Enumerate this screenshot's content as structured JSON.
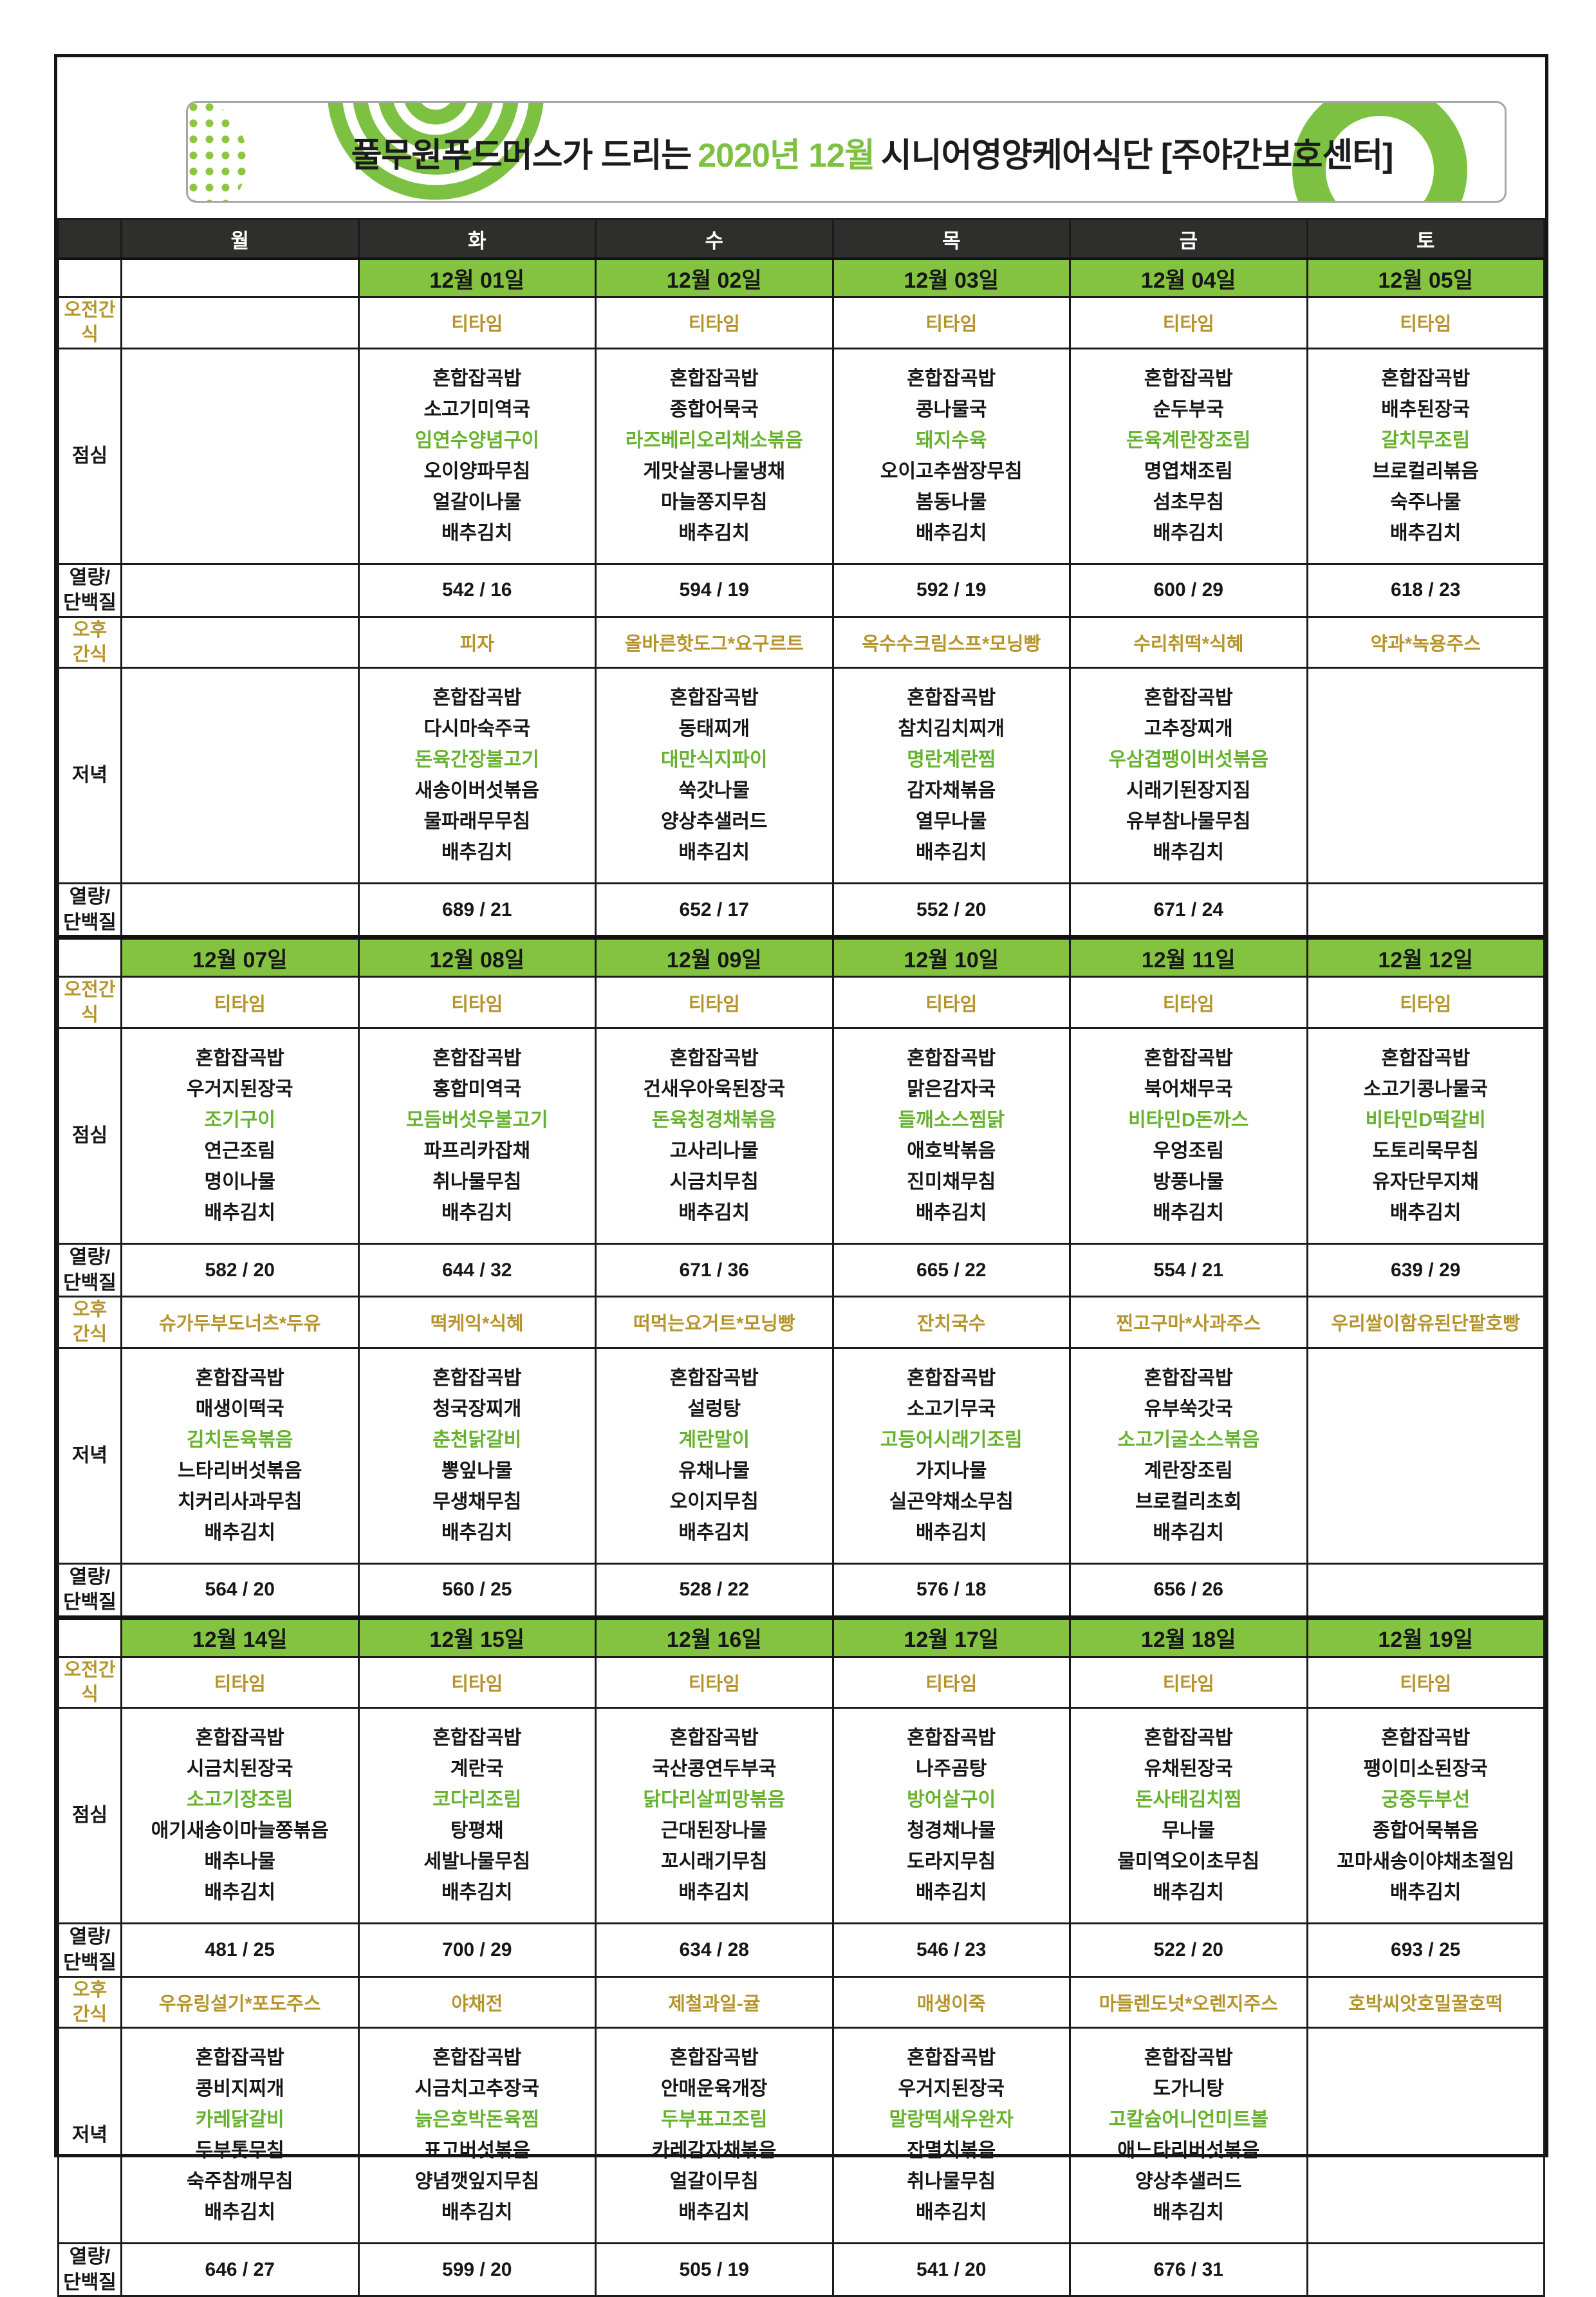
{
  "header": {
    "title_prefix": "풀무원푸드머스가 드리는 ",
    "title_highlight": "2020년 12월",
    "title_suffix": " 시니어영양케어식단 [주야간보호센터]"
  },
  "colors": {
    "band_green": "#84c340",
    "band_dark": "#2e2e2c",
    "dish_green": "#66b22e",
    "snack_gold": "#b6942c",
    "logo_green": "#7dc142"
  },
  "days": [
    "월",
    "화",
    "수",
    "목",
    "금",
    "토"
  ],
  "row_labels": {
    "morning_snack": "오전간\n식",
    "lunch": "점심",
    "calories": "열량/\n단백질",
    "afternoon_snack": "오후\n간식",
    "dinner": "저녁"
  },
  "highlight_line_index": 2,
  "weeks": [
    {
      "dates": [
        "",
        "12월 01일",
        "12월 02일",
        "12월 03일",
        "12월 04일",
        "12월 05일"
      ],
      "morning_snack": [
        "",
        "티타임",
        "티타임",
        "티타임",
        "티타임",
        "티타임"
      ],
      "lunch": [
        null,
        [
          "혼합잡곡밥",
          "소고기미역국",
          "임연수양념구이",
          "오이양파무침",
          "얼갈이나물",
          "배추김치"
        ],
        [
          "혼합잡곡밥",
          "종합어묵국",
          "라즈베리오리채소볶음",
          "게맛살콩나물냉채",
          "마늘쫑지무침",
          "배추김치"
        ],
        [
          "혼합잡곡밥",
          "콩나물국",
          "돼지수육",
          "오이고추쌈장무침",
          "봄동나물",
          "배추김치"
        ],
        [
          "혼합잡곡밥",
          "순두부국",
          "돈육계란장조림",
          "명엽채조림",
          "섬초무침",
          "배추김치"
        ],
        [
          "혼합잡곡밥",
          "배추된장국",
          "갈치무조림",
          "브로컬리볶음",
          "숙주나물",
          "배추김치"
        ]
      ],
      "lunch_calories": [
        "",
        "542 / 16",
        "594 / 19",
        "592 / 19",
        "600 / 29",
        "618 / 23"
      ],
      "afternoon_snack": [
        "",
        "피자",
        "올바른핫도그*요구르트",
        "옥수수크림스프*모닝빵",
        "수리취떡*식혜",
        "약과*녹용주스"
      ],
      "dinner": [
        null,
        [
          "혼합잡곡밥",
          "다시마숙주국",
          "돈육간장불고기",
          "새송이버섯볶음",
          "물파래무무침",
          "배추김치"
        ],
        [
          "혼합잡곡밥",
          "동태찌개",
          "대만식지파이",
          "쑥갓나물",
          "양상추샐러드",
          "배추김치"
        ],
        [
          "혼합잡곡밥",
          "참치김치찌개",
          "명란계란찜",
          "감자채볶음",
          "열무나물",
          "배추김치"
        ],
        [
          "혼합잡곡밥",
          "고추장찌개",
          "우삼겹팽이버섯볶음",
          "시래기된장지짐",
          "유부참나물무침",
          "배추김치"
        ],
        null
      ],
      "dinner_calories": [
        "",
        "689 / 21",
        "652 / 17",
        "552 / 20",
        "671 / 24",
        ""
      ]
    },
    {
      "dates": [
        "12월 07일",
        "12월 08일",
        "12월 09일",
        "12월 10일",
        "12월 11일",
        "12월 12일"
      ],
      "morning_snack": [
        "티타임",
        "티타임",
        "티타임",
        "티타임",
        "티타임",
        "티타임"
      ],
      "lunch": [
        [
          "혼합잡곡밥",
          "우거지된장국",
          "조기구이",
          "연근조림",
          "명이나물",
          "배추김치"
        ],
        [
          "혼합잡곡밥",
          "홍합미역국",
          "모듬버섯우불고기",
          "파프리카잡채",
          "취나물무침",
          "배추김치"
        ],
        [
          "혼합잡곡밥",
          "건새우아욱된장국",
          "돈육청경채볶음",
          "고사리나물",
          "시금치무침",
          "배추김치"
        ],
        [
          "혼합잡곡밥",
          "맑은감자국",
          "들깨소스찜닭",
          "애호박볶음",
          "진미채무침",
          "배추김치"
        ],
        [
          "혼합잡곡밥",
          "북어채무국",
          "비타민D돈까스",
          "우엉조림",
          "방풍나물",
          "배추김치"
        ],
        [
          "혼합잡곡밥",
          "소고기콩나물국",
          "비타민D떡갈비",
          "도토리묵무침",
          "유자단무지채",
          "배추김치"
        ]
      ],
      "lunch_calories": [
        "582 / 20",
        "644 / 32",
        "671 / 36",
        "665 / 22",
        "554 / 21",
        "639 / 29"
      ],
      "afternoon_snack": [
        "슈가두부도너츠*두유",
        "떡케익*식혜",
        "떠먹는요거트*모닝빵",
        "잔치국수",
        "찐고구마*사과주스",
        "우리쌀이함유된단팥호빵"
      ],
      "dinner": [
        [
          "혼합잡곡밥",
          "매생이떡국",
          "김치돈육볶음",
          "느타리버섯볶음",
          "치커리사과무침",
          "배추김치"
        ],
        [
          "혼합잡곡밥",
          "청국장찌개",
          "춘천닭갈비",
          "뽕잎나물",
          "무생채무침",
          "배추김치"
        ],
        [
          "혼합잡곡밥",
          "설렁탕",
          "계란말이",
          "유채나물",
          "오이지무침",
          "배추김치"
        ],
        [
          "혼합잡곡밥",
          "소고기무국",
          "고등어시래기조림",
          "가지나물",
          "실곤약채소무침",
          "배추김치"
        ],
        [
          "혼합잡곡밥",
          "유부쑥갓국",
          "소고기굴소스볶음",
          "계란장조림",
          "브로컬리초회",
          "배추김치"
        ],
        null
      ],
      "dinner_calories": [
        "564 / 20",
        "560 / 25",
        "528 / 22",
        "576 / 18",
        "656 / 26",
        ""
      ]
    },
    {
      "dates": [
        "12월 14일",
        "12월 15일",
        "12월 16일",
        "12월 17일",
        "12월 18일",
        "12월 19일"
      ],
      "morning_snack": [
        "티타임",
        "티타임",
        "티타임",
        "티타임",
        "티타임",
        "티타임"
      ],
      "lunch": [
        [
          "혼합잡곡밥",
          "시금치된장국",
          "소고기장조림",
          "애기새송이마늘쫑볶음",
          "배추나물",
          "배추김치"
        ],
        [
          "혼합잡곡밥",
          "계란국",
          "코다리조림",
          "탕평채",
          "세발나물무침",
          "배추김치"
        ],
        [
          "혼합잡곡밥",
          "국산콩연두부국",
          "닭다리살피망볶음",
          "근대된장나물",
          "꼬시래기무침",
          "배추김치"
        ],
        [
          "혼합잡곡밥",
          "나주곰탕",
          "방어살구이",
          "청경채나물",
          "도라지무침",
          "배추김치"
        ],
        [
          "혼합잡곡밥",
          "유채된장국",
          "돈사태김치찜",
          "무나물",
          "물미역오이초무침",
          "배추김치"
        ],
        [
          "혼합잡곡밥",
          "팽이미소된장국",
          "궁중두부선",
          "종합어묵볶음",
          "꼬마새송이야채초절임",
          "배추김치"
        ]
      ],
      "lunch_calories": [
        "481 / 25",
        "700 / 29",
        "634 / 28",
        "546 / 23",
        "522 / 20",
        "693 / 25"
      ],
      "afternoon_snack": [
        "우유링설기*포도주스",
        "야채전",
        "제철과일-귤",
        "매생이죽",
        "마들렌도넛*오렌지주스",
        "호박씨앗호밀꿀호떡"
      ],
      "dinner": [
        [
          "혼합잡곡밥",
          "콩비지찌개",
          "카레닭갈비",
          "두부톳무침",
          "숙주참깨무침",
          "배추김치"
        ],
        [
          "혼합잡곡밥",
          "시금치고추장국",
          "늙은호박돈육찜",
          "표고버섯볶음",
          "양념깻잎지무침",
          "배추김치"
        ],
        [
          "혼합잡곡밥",
          "안매운육개장",
          "두부표고조림",
          "카레감자채볶음",
          "얼갈이무침",
          "배추김치"
        ],
        [
          "혼합잡곡밥",
          "우거지된장국",
          "말랑떡새우완자",
          "잔멸치볶음",
          "취나물무침",
          "배추김치"
        ],
        [
          "혼합잡곡밥",
          "도가니탕",
          "고칼슘어니언미트볼",
          "애느타리버섯볶음",
          "양상추샐러드",
          "배추김치"
        ],
        null
      ],
      "dinner_calories": [
        "646 / 27",
        "599 / 20",
        "505 / 19",
        "541 / 20",
        "676 / 31",
        ""
      ]
    }
  ]
}
